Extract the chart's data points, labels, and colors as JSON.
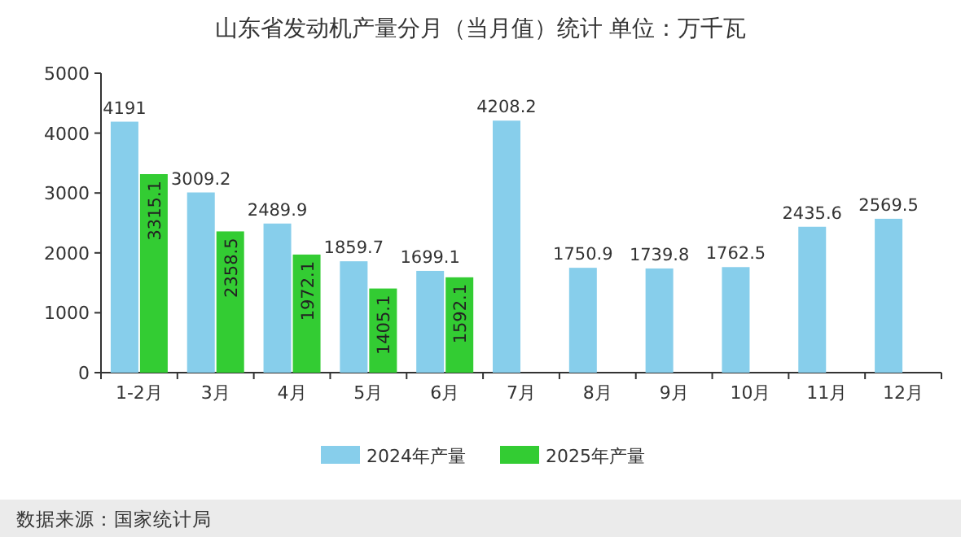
{
  "chart_data": {
    "type": "bar",
    "title": "山东省发动机产量分月（当月值）统计  单位：万千瓦",
    "categories": [
      "1-2月",
      "3月",
      "4月",
      "5月",
      "6月",
      "7月",
      "8月",
      "9月",
      "10月",
      "11月",
      "12月"
    ],
    "series": [
      {
        "name": "2024年产量",
        "color": "#87ceeb",
        "values": [
          4191,
          3009.2,
          2489.9,
          1859.7,
          1699.1,
          4208.2,
          1750.9,
          1739.8,
          1762.5,
          2435.6,
          2569.5
        ]
      },
      {
        "name": "2025年产量",
        "color": "#33cc33",
        "values": [
          3315.1,
          2358.5,
          1972.1,
          1405.1,
          1592.1,
          null,
          null,
          null,
          null,
          null,
          null
        ]
      }
    ],
    "ylim": [
      0,
      5000
    ],
    "yticks": [
      0,
      1000,
      2000,
      3000,
      4000,
      5000
    ],
    "data_labels": true,
    "legend": "bottom",
    "annotations": [
      "数据来源：国家统计局"
    ]
  }
}
